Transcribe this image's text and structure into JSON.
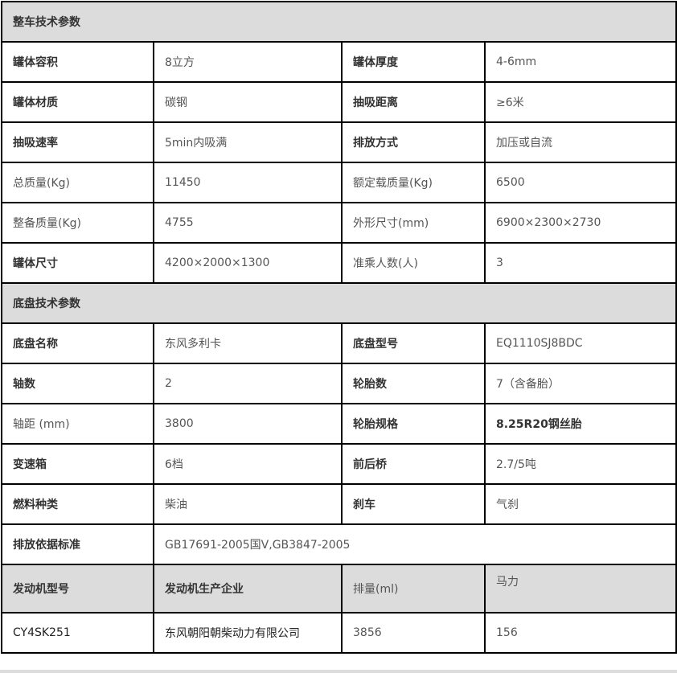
{
  "sections": {
    "vehicle": "整车技术参数",
    "chassis": "底盘技术参数"
  },
  "vehicle_rows": [
    [
      "罐体容积",
      "8立方",
      "罐体厚度",
      "4-6mm"
    ],
    [
      "罐体材质",
      "碳钢",
      "抽吸距离",
      "≥6米"
    ],
    [
      "抽吸速率",
      "5min内吸满",
      "排放方式",
      "加压或自流"
    ],
    [
      "总质量(Kg)",
      "11450",
      "额定载质量(Kg)",
      "6500"
    ],
    [
      "整备质量(Kg)",
      "4755",
      "外形尺寸(mm)",
      "6900×2300×2730"
    ],
    [
      "罐体尺寸",
      "4200×2000×1300",
      "准乘人数(人)",
      "3"
    ]
  ],
  "chassis_rows": [
    [
      "底盘名称",
      "东风多利卡",
      "底盘型号",
      "EQ1110SJ8BDC"
    ],
    [
      "轴数",
      "2",
      "轮胎数",
      "7（含备胎）"
    ],
    [
      "轴距 (mm)",
      "3800",
      "轮胎规格",
      "8.25R20钢丝胎"
    ],
    [
      "变速箱",
      "6档",
      "前后桥",
      "2.7/5吨"
    ],
    [
      "燃料种类",
      "柴油",
      "刹车",
      "气刹"
    ]
  ],
  "emission": {
    "label": "排放依据标准",
    "value": "GB17691-2005国Ⅴ,GB3847-2005"
  },
  "engine": {
    "headers": [
      "发动机型号",
      "发动机生产企业",
      "排量(ml)",
      "马力"
    ],
    "values": [
      "CY4SK251",
      "东风朝阳朝柴动力有限公司",
      "3856",
      "156"
    ]
  }
}
